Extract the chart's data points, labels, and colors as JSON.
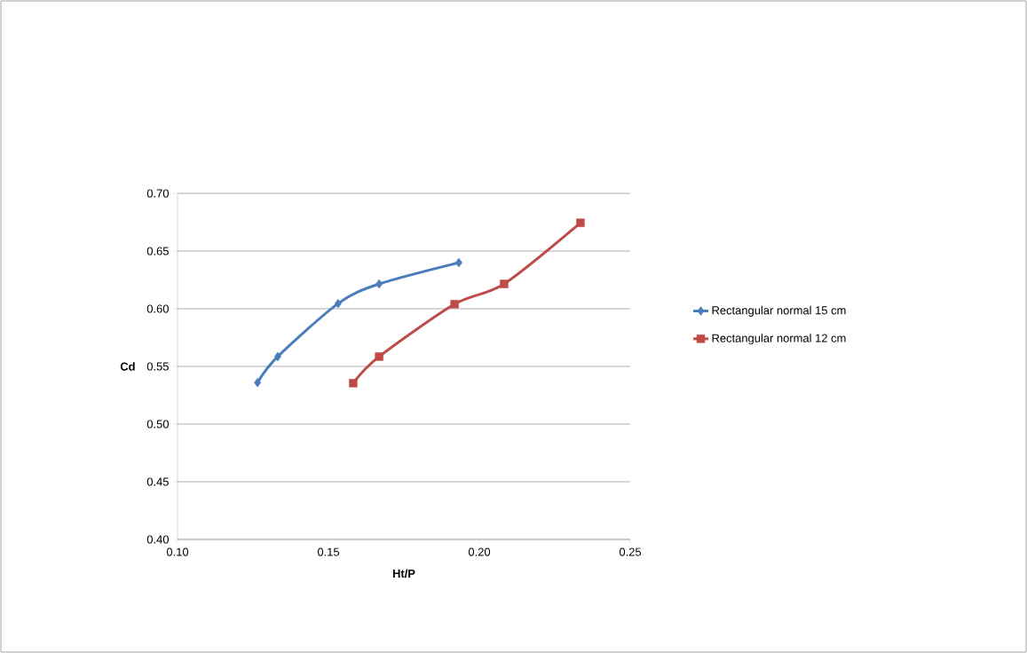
{
  "chart_data": {
    "type": "line",
    "xlabel": "Ht/P",
    "ylabel": "Cd",
    "xlim": [
      0.1,
      0.25
    ],
    "xticks": [
      {
        "value": 0.1,
        "label": "0.10"
      },
      {
        "value": 0.15,
        "label": "0.15"
      },
      {
        "value": 0.2,
        "label": "0.20"
      },
      {
        "value": 0.25,
        "label": "0.25"
      }
    ],
    "ylim": [
      0.4,
      0.7
    ],
    "yticks": [
      {
        "value": 0.4,
        "label": "0.40"
      },
      {
        "value": 0.45,
        "label": "0.45"
      },
      {
        "value": 0.5,
        "label": "0.50"
      },
      {
        "value": 0.55,
        "label": "0.55"
      },
      {
        "value": 0.6,
        "label": "0.60"
      },
      {
        "value": 0.65,
        "label": "0.65"
      },
      {
        "value": 0.7,
        "label": "0.70"
      }
    ],
    "grid": "y",
    "legend": "right",
    "series": [
      {
        "name": "Rectangular normal 15 cm",
        "color": "#4a7ebb",
        "marker": "diamond",
        "x": [
          0.1265,
          0.1332,
          0.1532,
          0.1668,
          0.1932
        ],
        "values": [
          0.536,
          0.5585,
          0.6045,
          0.6215,
          0.64
        ]
      },
      {
        "name": "Rectangular normal 12 cm",
        "color": "#be4b48",
        "marker": "square",
        "x": [
          0.1582,
          0.1668,
          0.1918,
          0.2082,
          0.2335
        ],
        "values": [
          0.5355,
          0.5585,
          0.604,
          0.6215,
          0.6745
        ]
      }
    ]
  }
}
